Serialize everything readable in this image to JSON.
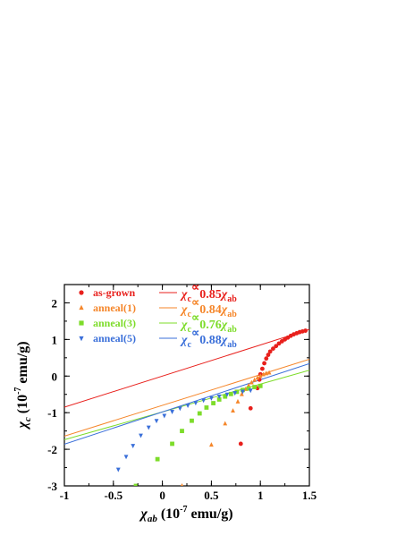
{
  "chart_data": {
    "type": "scatter",
    "title": "",
    "xlabel": {
      "main": "χ",
      "sub": "ab",
      "rest": " (10",
      "sup": "-7",
      "end": " emu/g)"
    },
    "ylabel": {
      "main": "χ",
      "sub": "c",
      "rest": " (10",
      "sup": "-7",
      "end": " emu/g)"
    },
    "xlim": [
      -1,
      1.5
    ],
    "ylim": [
      -3,
      2.5
    ],
    "x_ticks": [
      -1,
      -0.5,
      0,
      0.5,
      1,
      1.5
    ],
    "x_tick_labels": [
      "-1",
      "-0.5",
      "0",
      "0.5",
      "1",
      "1.5"
    ],
    "y_ticks": [
      -3,
      -2,
      -1,
      0,
      1,
      2
    ],
    "y_tick_labels": [
      "-3",
      "-2",
      "-1",
      "0",
      "1",
      "2"
    ],
    "grid": false,
    "legend_position": "top-left",
    "series": [
      {
        "name": "as-grown",
        "color": "#e8201c",
        "marker": "circle",
        "fit_label": {
          "lhs": "χ",
          "lhs_sub": "c",
          "sym": "∝",
          "coef": "0.85",
          "rhs": "χ",
          "rhs_sub": "ab"
        },
        "fit": {
          "slope": 0.85,
          "intercept": 0
        },
        "points": [
          [
            0.8,
            -1.85
          ],
          [
            0.9,
            -0.88
          ],
          [
            0.97,
            -0.33
          ],
          [
            0.99,
            -0.1
          ],
          [
            1.0,
            0.05
          ],
          [
            1.02,
            0.2
          ],
          [
            1.04,
            0.35
          ],
          [
            1.06,
            0.48
          ],
          [
            1.08,
            0.58
          ],
          [
            1.1,
            0.67
          ],
          [
            1.13,
            0.75
          ],
          [
            1.16,
            0.82
          ],
          [
            1.19,
            0.89
          ],
          [
            1.22,
            0.95
          ],
          [
            1.25,
            1.0
          ],
          [
            1.28,
            1.05
          ],
          [
            1.31,
            1.1
          ],
          [
            1.34,
            1.14
          ],
          [
            1.37,
            1.17
          ],
          [
            1.4,
            1.2
          ],
          [
            1.43,
            1.22
          ],
          [
            1.46,
            1.24
          ]
        ]
      },
      {
        "name": "anneal(1)",
        "color": "#f5862a",
        "marker": "triangle-up",
        "fit_label": {
          "lhs": "χ",
          "lhs_sub": "c",
          "sym": "∝",
          "coef": "0.84",
          "rhs": "χ",
          "rhs_sub": "ab"
        },
        "fit": {
          "slope": 0.84,
          "intercept": -0.8
        },
        "points": [
          [
            0.2,
            -3.0
          ],
          [
            0.5,
            -1.88
          ],
          [
            0.64,
            -1.3
          ],
          [
            0.72,
            -0.95
          ],
          [
            0.77,
            -0.7
          ],
          [
            0.81,
            -0.5
          ],
          [
            0.85,
            -0.36
          ],
          [
            0.88,
            -0.26
          ],
          [
            0.91,
            -0.18
          ],
          [
            0.94,
            -0.11
          ],
          [
            0.97,
            -0.05
          ],
          [
            1.0,
            0.0
          ],
          [
            1.03,
            0.04
          ],
          [
            1.06,
            0.07
          ],
          [
            1.09,
            0.09
          ]
        ]
      },
      {
        "name": "anneal(3)",
        "color": "#7ddc2a",
        "marker": "square",
        "fit_label": {
          "lhs": "χ",
          "lhs_sub": "c",
          "sym": "∝",
          "coef": "0.76",
          "rhs": "χ",
          "rhs_sub": "ab"
        },
        "fit": {
          "slope": 0.76,
          "intercept": -0.98
        },
        "points": [
          [
            -0.27,
            -3.0
          ],
          [
            -0.05,
            -2.27
          ],
          [
            0.1,
            -1.85
          ],
          [
            0.2,
            -1.5
          ],
          [
            0.3,
            -1.22
          ],
          [
            0.38,
            -1.02
          ],
          [
            0.45,
            -0.86
          ],
          [
            0.52,
            -0.74
          ],
          [
            0.58,
            -0.64
          ],
          [
            0.64,
            -0.56
          ],
          [
            0.7,
            -0.49
          ],
          [
            0.76,
            -0.43
          ],
          [
            0.82,
            -0.38
          ],
          [
            0.88,
            -0.34
          ],
          [
            0.94,
            -0.3
          ],
          [
            1.0,
            -0.27
          ]
        ]
      },
      {
        "name": "anneal(5)",
        "color": "#3a6fd9",
        "marker": "triangle-down",
        "fit_label": {
          "lhs": "χ",
          "lhs_sub": "c",
          "sym": "∝",
          "coef": "0.88",
          "rhs": "χ",
          "rhs_sub": "ab"
        },
        "fit": {
          "slope": 0.88,
          "intercept": -0.98
        },
        "points": [
          [
            -0.45,
            -2.55
          ],
          [
            -0.37,
            -2.2
          ],
          [
            -0.3,
            -1.9
          ],
          [
            -0.22,
            -1.62
          ],
          [
            -0.14,
            -1.4
          ],
          [
            -0.06,
            -1.22
          ],
          [
            0.02,
            -1.08
          ],
          [
            0.1,
            -0.97
          ],
          [
            0.18,
            -0.88
          ],
          [
            0.26,
            -0.8
          ],
          [
            0.34,
            -0.73
          ],
          [
            0.42,
            -0.66
          ],
          [
            0.5,
            -0.6
          ],
          [
            0.58,
            -0.55
          ],
          [
            0.66,
            -0.5
          ],
          [
            0.74,
            -0.46
          ],
          [
            0.82,
            -0.42
          ],
          [
            0.9,
            -0.39
          ]
        ]
      }
    ]
  }
}
